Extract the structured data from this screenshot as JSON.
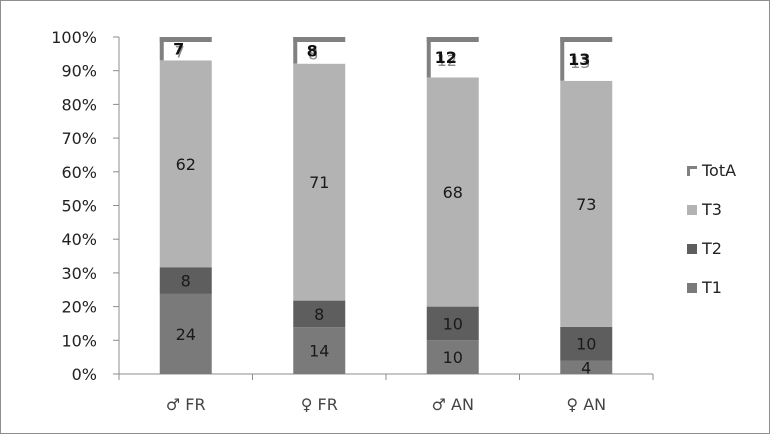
{
  "chart_data": {
    "type": "bar",
    "stacked": true,
    "normalized_percent": true,
    "categories": [
      "♂ FR",
      "♀ FR",
      "♂ AN",
      "♀ AN"
    ],
    "series": [
      {
        "name": "T1",
        "values": [
          24,
          14,
          10,
          4
        ]
      },
      {
        "name": "T2",
        "values": [
          8,
          8,
          10,
          10
        ]
      },
      {
        "name": "T3",
        "values": [
          62,
          71,
          68,
          73
        ]
      },
      {
        "name": "TotA",
        "values": [
          7,
          8,
          12,
          13
        ]
      }
    ],
    "y_ticks": [
      "0%",
      "10%",
      "20%",
      "30%",
      "40%",
      "50%",
      "60%",
      "70%",
      "80%",
      "90%",
      "100%"
    ],
    "ylim": [
      0,
      100
    ],
    "grid": false,
    "legend_position": "right",
    "colors": {
      "T1": "#7a7a7a",
      "T2": "#5e5e5e",
      "T3": "#b3b3b3",
      "TotA": "#808080"
    },
    "legend_order": [
      "TotA",
      "T3",
      "T2",
      "T1"
    ]
  }
}
